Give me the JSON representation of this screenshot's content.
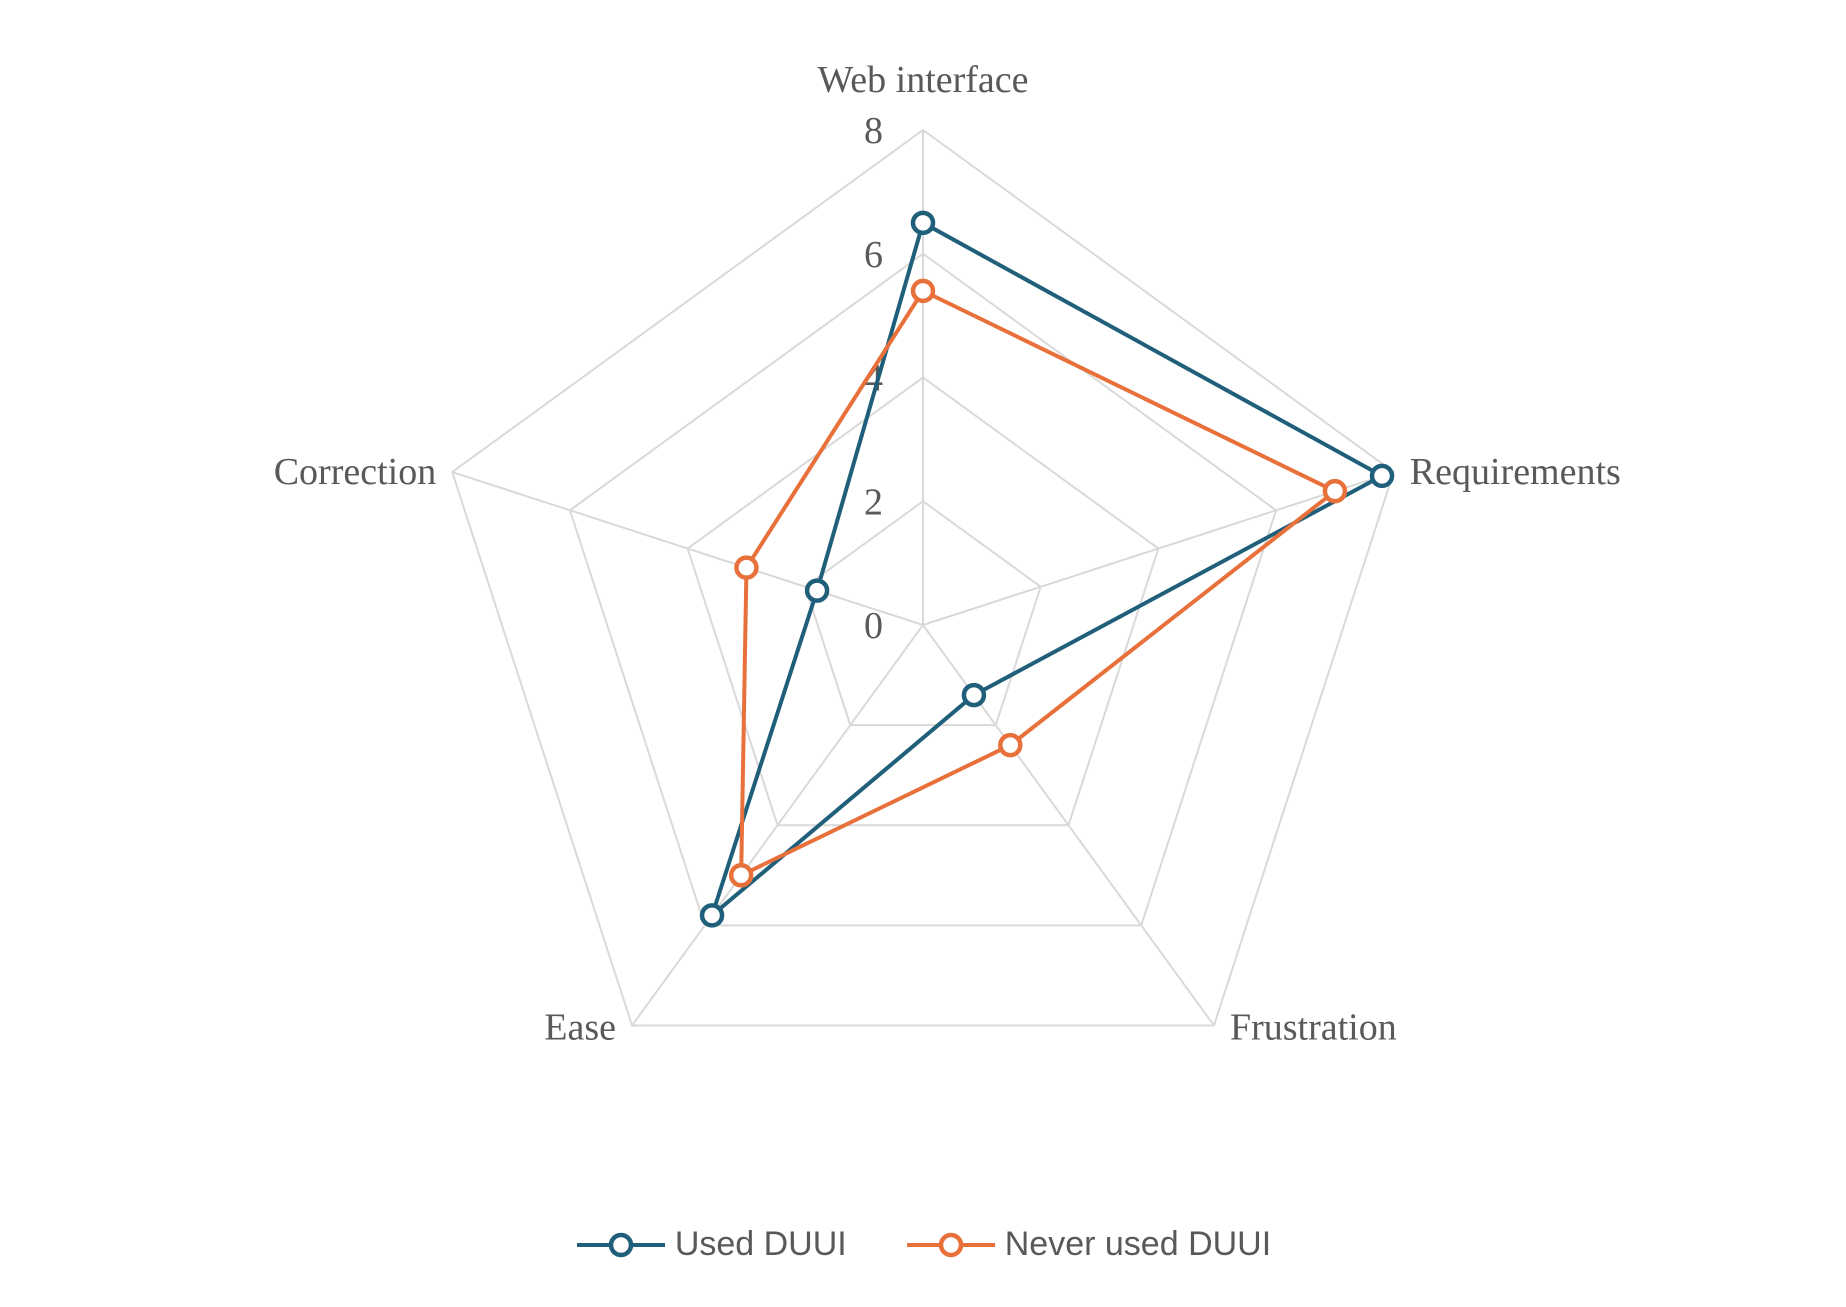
{
  "chart_data": {
    "type": "radar",
    "title": "",
    "axes": [
      "Web interface",
      "Requirements",
      "Frustration",
      "Ease",
      "Correction"
    ],
    "rlim": [
      0,
      8
    ],
    "ticks": [
      "0",
      "2",
      "4",
      "6",
      "8"
    ],
    "grid": true,
    "legend_position": "bottom",
    "series": [
      {
        "name": "Used DUUI",
        "color": "#1f5f7a",
        "values": [
          6.5,
          7.8,
          1.4,
          5.8,
          1.8
        ]
      },
      {
        "name": "Never used DUUI",
        "color": "#e8703a",
        "values": [
          5.4,
          7.0,
          2.4,
          5.0,
          3.0
        ]
      }
    ]
  }
}
